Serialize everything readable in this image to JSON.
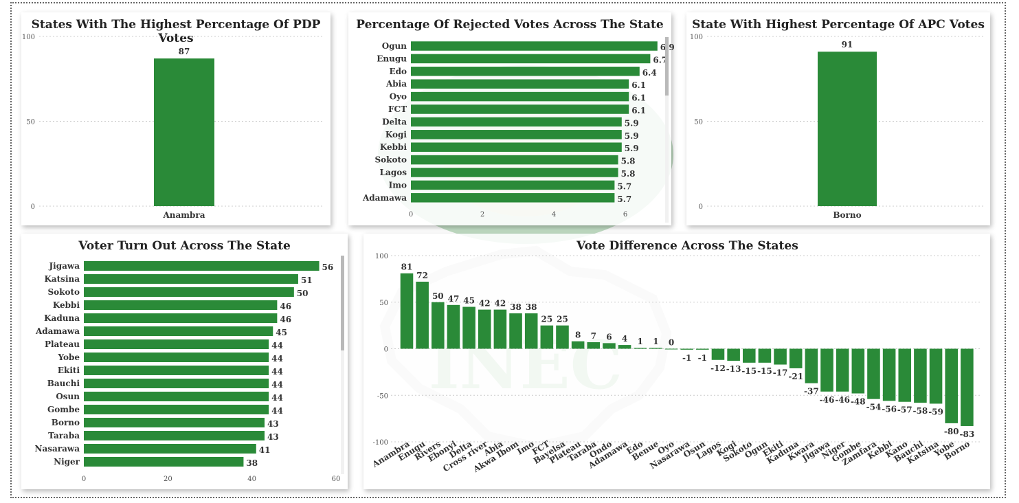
{
  "colors": {
    "bar": "#2a8a38",
    "watermark": "#2f8a3a"
  },
  "watermark": {
    "text": "INEC"
  },
  "chart_data": [
    {
      "id": "pdp",
      "type": "bar",
      "title": "States With The Highest Percentage Of PDP Votes",
      "categories": [
        "Anambra"
      ],
      "values": [
        87
      ],
      "ylim": [
        0,
        100
      ],
      "yticks": [
        0,
        50,
        100
      ]
    },
    {
      "id": "rejected",
      "type": "bar",
      "orientation": "horizontal",
      "title": "Percentage Of Rejected Votes Across The State",
      "categories": [
        "Ogun",
        "Enugu",
        "Edo",
        "Abia",
        "Oyo",
        "FCT",
        "Delta",
        "Kogi",
        "Kebbi",
        "Sokoto",
        "Lagos",
        "Imo",
        "Adamawa"
      ],
      "values": [
        6.9,
        6.7,
        6.4,
        6.1,
        6.1,
        6.1,
        5.9,
        5.9,
        5.9,
        5.8,
        5.8,
        5.7,
        5.7
      ],
      "xlim": [
        0,
        7
      ],
      "xticks": [
        0,
        2,
        4,
        6
      ]
    },
    {
      "id": "apc",
      "type": "bar",
      "title": "State With Highest Percentage Of APC Votes",
      "categories": [
        "Borno"
      ],
      "values": [
        91
      ],
      "ylim": [
        0,
        100
      ],
      "yticks": [
        0,
        50,
        100
      ]
    },
    {
      "id": "turnout",
      "type": "bar",
      "orientation": "horizontal",
      "title": "Voter Turn Out Across The State",
      "categories": [
        "Jigawa",
        "Katsina",
        "Sokoto",
        "Kebbi",
        "Kaduna",
        "Adamawa",
        "Plateau",
        "Yobe",
        "Ekiti",
        "Bauchi",
        "Osun",
        "Gombe",
        "Borno",
        "Taraba",
        "Nasarawa",
        "Niger"
      ],
      "values": [
        56,
        51,
        50,
        46,
        46,
        45,
        44,
        44,
        44,
        44,
        44,
        44,
        43,
        43,
        41,
        38
      ],
      "xlim": [
        0,
        60
      ],
      "xticks": [
        0,
        20,
        40,
        60
      ]
    },
    {
      "id": "difference",
      "type": "bar",
      "title": "Vote Difference Across The States",
      "categories": [
        "Anambra",
        "Enugu",
        "Rivers",
        "Ebonyi",
        "Delta",
        "Cross river",
        "Abia",
        "Akwa Ibom",
        "Imo",
        "FCT",
        "Bayelsa",
        "Plateau",
        "Taraba",
        "Ondo",
        "Adamawa",
        "Edo",
        "Benue",
        "Oyo",
        "Nasarawa",
        "Osun",
        "Lagos",
        "Kogi",
        "Sokoto",
        "Ogun",
        "Ekiti",
        "Kaduna",
        "Kwara",
        "Jigawa",
        "Niger",
        "Gombe",
        "Zamfara",
        "Kebbi",
        "Kano",
        "Bauchi",
        "Katsina",
        "Yobe",
        "Borno"
      ],
      "values": [
        81,
        72,
        50,
        47,
        45,
        42,
        42,
        38,
        38,
        25,
        25,
        8,
        7,
        6,
        4,
        1,
        1,
        0,
        -1,
        -1,
        -12,
        -13,
        -15,
        -15,
        -17,
        -21,
        -37,
        -46,
        -46,
        -48,
        -54,
        -56,
        -57,
        -58,
        -59,
        -80,
        -83
      ],
      "ylim": [
        -100,
        100
      ],
      "yticks": [
        -100,
        -50,
        0,
        50,
        100
      ]
    }
  ]
}
